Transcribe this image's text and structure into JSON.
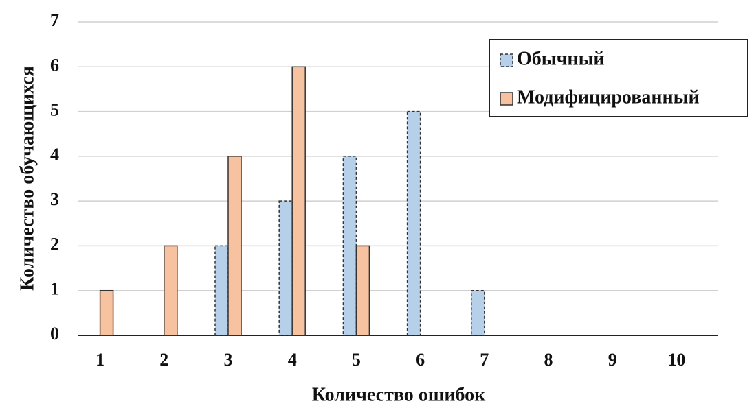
{
  "chart_data": {
    "type": "bar",
    "x_label": "Количество ошибок",
    "y_label": "Количество обучающихся",
    "categories": [
      "1",
      "2",
      "3",
      "4",
      "5",
      "6",
      "7",
      "8",
      "9",
      "10"
    ],
    "series": [
      {
        "name": "Обычный",
        "color": "#b7d0e9",
        "values": [
          0,
          0,
          2,
          3,
          4,
          5,
          1,
          0,
          0,
          0
        ]
      },
      {
        "name": "Модифицированный",
        "color": "#f7c29f",
        "values": [
          1,
          2,
          4,
          6,
          2,
          0,
          0,
          0,
          0,
          0
        ]
      }
    ],
    "ylim": [
      0,
      7
    ],
    "yticks": [
      0,
      1,
      2,
      3,
      4,
      5,
      6,
      7
    ],
    "grid": true,
    "legend": "upper right"
  }
}
